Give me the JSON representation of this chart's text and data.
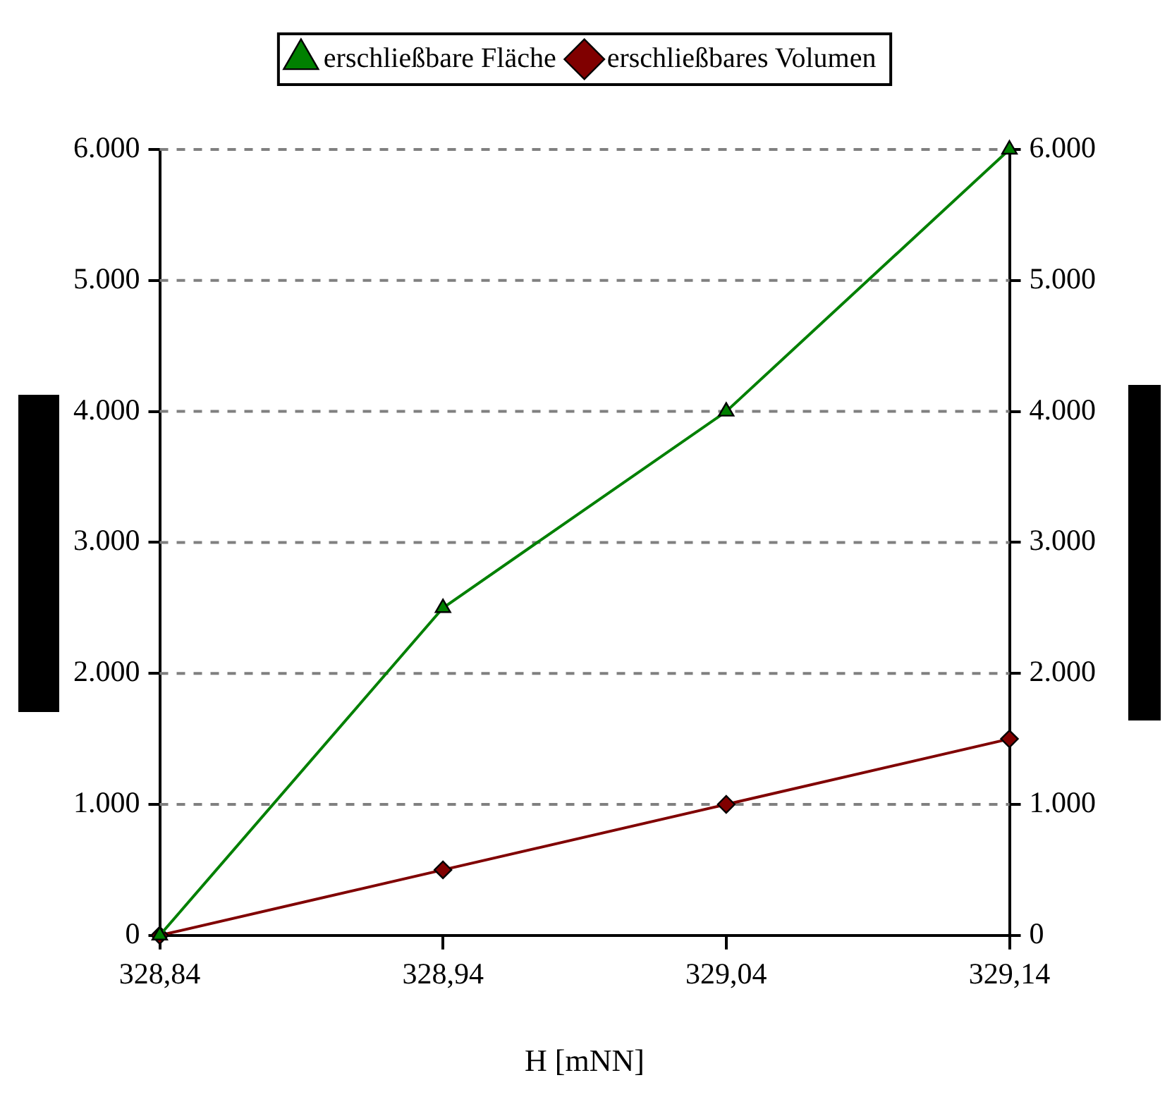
{
  "chart_data": {
    "type": "line",
    "xlabel": "H [mNN]",
    "x": [
      328.84,
      328.94,
      329.04,
      329.14
    ],
    "series": [
      {
        "name": "erschließbare Fläche",
        "color": "#008000",
        "marker": "triangle",
        "values": [
          0,
          2500,
          4000,
          6000
        ]
      },
      {
        "name": "erschließbares Volumen",
        "color": "#800000",
        "marker": "diamond",
        "values": [
          0,
          500,
          1000,
          1500
        ]
      }
    ],
    "xlim": [
      328.84,
      329.14
    ],
    "xticks": [
      {
        "value": 328.84,
        "label": "328,84"
      },
      {
        "value": 328.94,
        "label": "328,94"
      },
      {
        "value": 329.04,
        "label": "329,04"
      },
      {
        "value": 329.14,
        "label": "329,14"
      }
    ],
    "ylim": [
      0,
      6000
    ],
    "yticks": [
      0,
      {
        "value": 1000,
        "label": "1.000"
      },
      {
        "value": 2000,
        "label": "2.000"
      },
      {
        "value": 3000,
        "label": "3.000"
      },
      {
        "value": 4000,
        "label": "4.000"
      },
      {
        "value": 5000,
        "label": "5.000"
      },
      {
        "value": 6000,
        "label": "6.000"
      }
    ],
    "y2lim": [
      0,
      6000
    ],
    "y2ticks": [
      0,
      {
        "value": 1000,
        "label": "1.000"
      },
      {
        "value": 2000,
        "label": "2.000"
      },
      {
        "value": 3000,
        "label": "3.000"
      },
      {
        "value": 4000,
        "label": "4.000"
      },
      {
        "value": 5000,
        "label": "5.000"
      },
      {
        "value": 6000,
        "label": "6.000"
      }
    ],
    "grid": "y",
    "legend": "top",
    "line_style": "solid"
  }
}
